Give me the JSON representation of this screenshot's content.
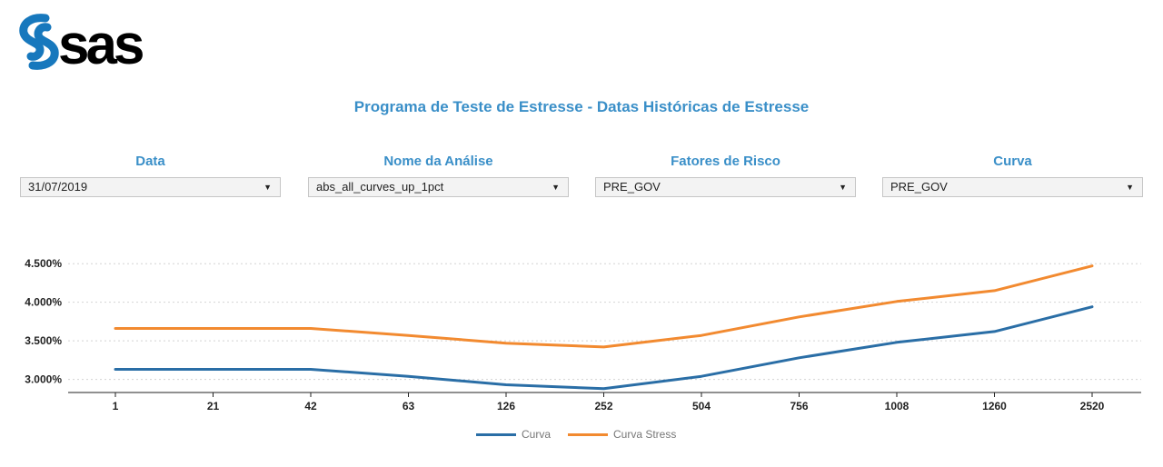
{
  "logo": {
    "text": "sas"
  },
  "page_title": "Programa de Teste de  Estresse - Datas Históricas de Estresse",
  "filters": [
    {
      "label": "Data",
      "value": "31/07/2019"
    },
    {
      "label": "Nome da Análise",
      "value": "abs_all_curves_up_1pct"
    },
    {
      "label": "Fatores de Risco",
      "value": "PRE_GOV"
    },
    {
      "label": "Curva",
      "value": "PRE_GOV"
    }
  ],
  "colors": {
    "accent": "#3a8fc8",
    "curva": "#2a6ea6",
    "curva_stress": "#f28a30"
  },
  "chart_data": {
    "type": "line",
    "categories": [
      "1",
      "21",
      "42",
      "63",
      "126",
      "252",
      "504",
      "756",
      "1008",
      "1260",
      "2520"
    ],
    "series": [
      {
        "name": "Curva",
        "values": [
          3.13,
          3.13,
          3.13,
          3.04,
          2.93,
          2.88,
          3.04,
          3.28,
          3.48,
          3.62,
          3.94
        ]
      },
      {
        "name": "Curva Stress",
        "values": [
          3.66,
          3.66,
          3.66,
          3.57,
          3.47,
          3.42,
          3.57,
          3.81,
          4.01,
          4.15,
          4.47
        ]
      }
    ],
    "yticks": [
      3.0,
      3.5,
      4.0,
      4.5
    ],
    "ytick_labels": [
      "3.000%",
      "3.500%",
      "4.000%",
      "4.500%"
    ],
    "ylim": [
      2.83,
      4.62
    ],
    "grid": true,
    "legend_position": "bottom-center"
  }
}
